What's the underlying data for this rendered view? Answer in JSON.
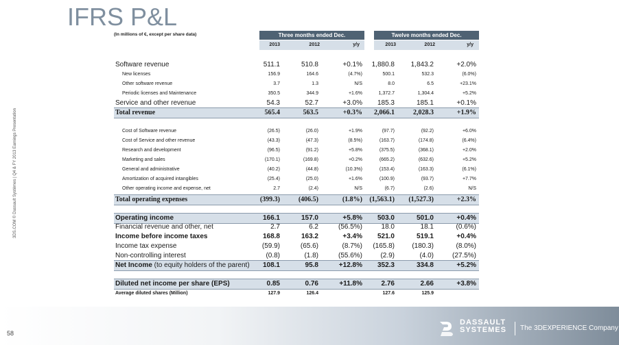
{
  "title": "IFRS P&L",
  "side_text": "3DS.COM © Dassault Systèmes | Q4 & FY 2013 Earnings Presentation",
  "units_note": "(In millions of €, except per share data)",
  "group_headers": [
    "Three months ended Dec.",
    "Twelve months ended Dec."
  ],
  "sub_headers": [
    "2013",
    "2012",
    "y/y",
    "2013",
    "2012",
    "y/y"
  ],
  "rows": [
    {
      "label": "Software revenue",
      "values": [
        "511.1",
        "510.8",
        "+0.1%",
        "1,880.8",
        "1,843.2",
        "+2.0%"
      ]
    },
    {
      "label": "New licenses",
      "values": [
        "156.9",
        "164.6",
        "(4.7%)",
        "500.1",
        "532.3",
        "(6.0%)"
      ]
    },
    {
      "label": "Other software revenue",
      "values": [
        "3.7",
        "1.3",
        "N/S",
        "8.0",
        "6.5",
        "+23.1%"
      ]
    },
    {
      "label": "Periodic licenses and Maintenance",
      "values": [
        "350.5",
        "344.9",
        "+1.6%",
        "1,372.7",
        "1,304.4",
        "+5.2%"
      ]
    },
    {
      "label": "Service and other revenue",
      "values": [
        "54.3",
        "52.7",
        "+3.0%",
        "185.3",
        "185.1",
        "+0.1%"
      ]
    },
    {
      "label": "Total revenue",
      "values": [
        "565.4",
        "563.5",
        "+0.3%",
        "2,066.1",
        "2,028.3",
        "+1.9%"
      ]
    },
    {
      "label": "Cost of Software revenue",
      "values": [
        "(26.5)",
        "(26.0)",
        "+1.9%",
        "(97.7)",
        "(92.2)",
        "+6.0%"
      ]
    },
    {
      "label": "Cost of Service and other revenue",
      "values": [
        "(43.3)",
        "(47.3)",
        "(8.5%)",
        "(163.7)",
        "(174.8)",
        "(6.4%)"
      ]
    },
    {
      "label": "Research and development",
      "values": [
        "(96.5)",
        "(91.2)",
        "+5.8%",
        "(375.5)",
        "(368.1)",
        "+2.0%"
      ]
    },
    {
      "label": "Marketing and sales",
      "values": [
        "(170.1)",
        "(169.8)",
        "+0.2%",
        "(665.2)",
        "(632.6)",
        "+5.2%"
      ]
    },
    {
      "label": "General and administrative",
      "values": [
        "(40.2)",
        "(44.8)",
        "(10.3%)",
        "(153.4)",
        "(163.3)",
        "(6.1%)"
      ]
    },
    {
      "label": "Amortization of acquired intangibles",
      "values": [
        "(25.4)",
        "(25.0)",
        "+1.6%",
        "(100.9)",
        "(93.7)",
        "+7.7%"
      ]
    },
    {
      "label": "Other operating income and expense, net",
      "values": [
        "2.7",
        "(2.4)",
        "N/S",
        "(6.7)",
        "(2.6)",
        "N/S"
      ]
    },
    {
      "label": "Total operating expenses",
      "values": [
        "(399.3)",
        "(406.5)",
        "(1.8%)",
        "(1,563.1)",
        "(1,527.3)",
        "+2.3%"
      ]
    },
    {
      "label": "Operating income",
      "values": [
        "166.1",
        "157.0",
        "+5.8%",
        "503.0",
        "501.0",
        "+0.4%"
      ]
    },
    {
      "label": "Financial revenue and other, net",
      "values": [
        "2.7",
        "6.2",
        "(56.5%)",
        "18.0",
        "18.1",
        "(0.6%)"
      ]
    },
    {
      "label": "Income before income taxes",
      "values": [
        "168.8",
        "163.2",
        "+3.4%",
        "521.0",
        "519.1",
        "+0.4%"
      ]
    },
    {
      "label": "Income tax expense",
      "values": [
        "(59.9)",
        "(65.6)",
        "(8.7%)",
        "(165.8)",
        "(180.3)",
        "(8.0%)"
      ]
    },
    {
      "label": "Non-controlling interest",
      "values": [
        "(0.8)",
        "(1.8)",
        "(55.6%)",
        "(2.9)",
        "(4.0)",
        "(27.5%)"
      ]
    },
    {
      "label": "Net Income",
      "label_suffix": " (to equity holders of the parent)",
      "values": [
        "108.1",
        "95.8",
        "+12.8%",
        "352.3",
        "334.8",
        "+5.2%"
      ]
    },
    {
      "label": "Diluted net income per share (EPS)",
      "values": [
        "0.85",
        "0.76",
        "+11.8%",
        "2.76",
        "2.66",
        "+3.8%"
      ]
    },
    {
      "label": "Average diluted shares (Million)",
      "values": [
        "127.9",
        "126.4",
        "",
        "127.6",
        "125.9",
        ""
      ]
    }
  ],
  "page_number": "58",
  "logo": {
    "name_line1": "DASSAULT",
    "name_line2": "SYSTEMES",
    "tagline": "The 3DEXPERIENCE Company"
  }
}
